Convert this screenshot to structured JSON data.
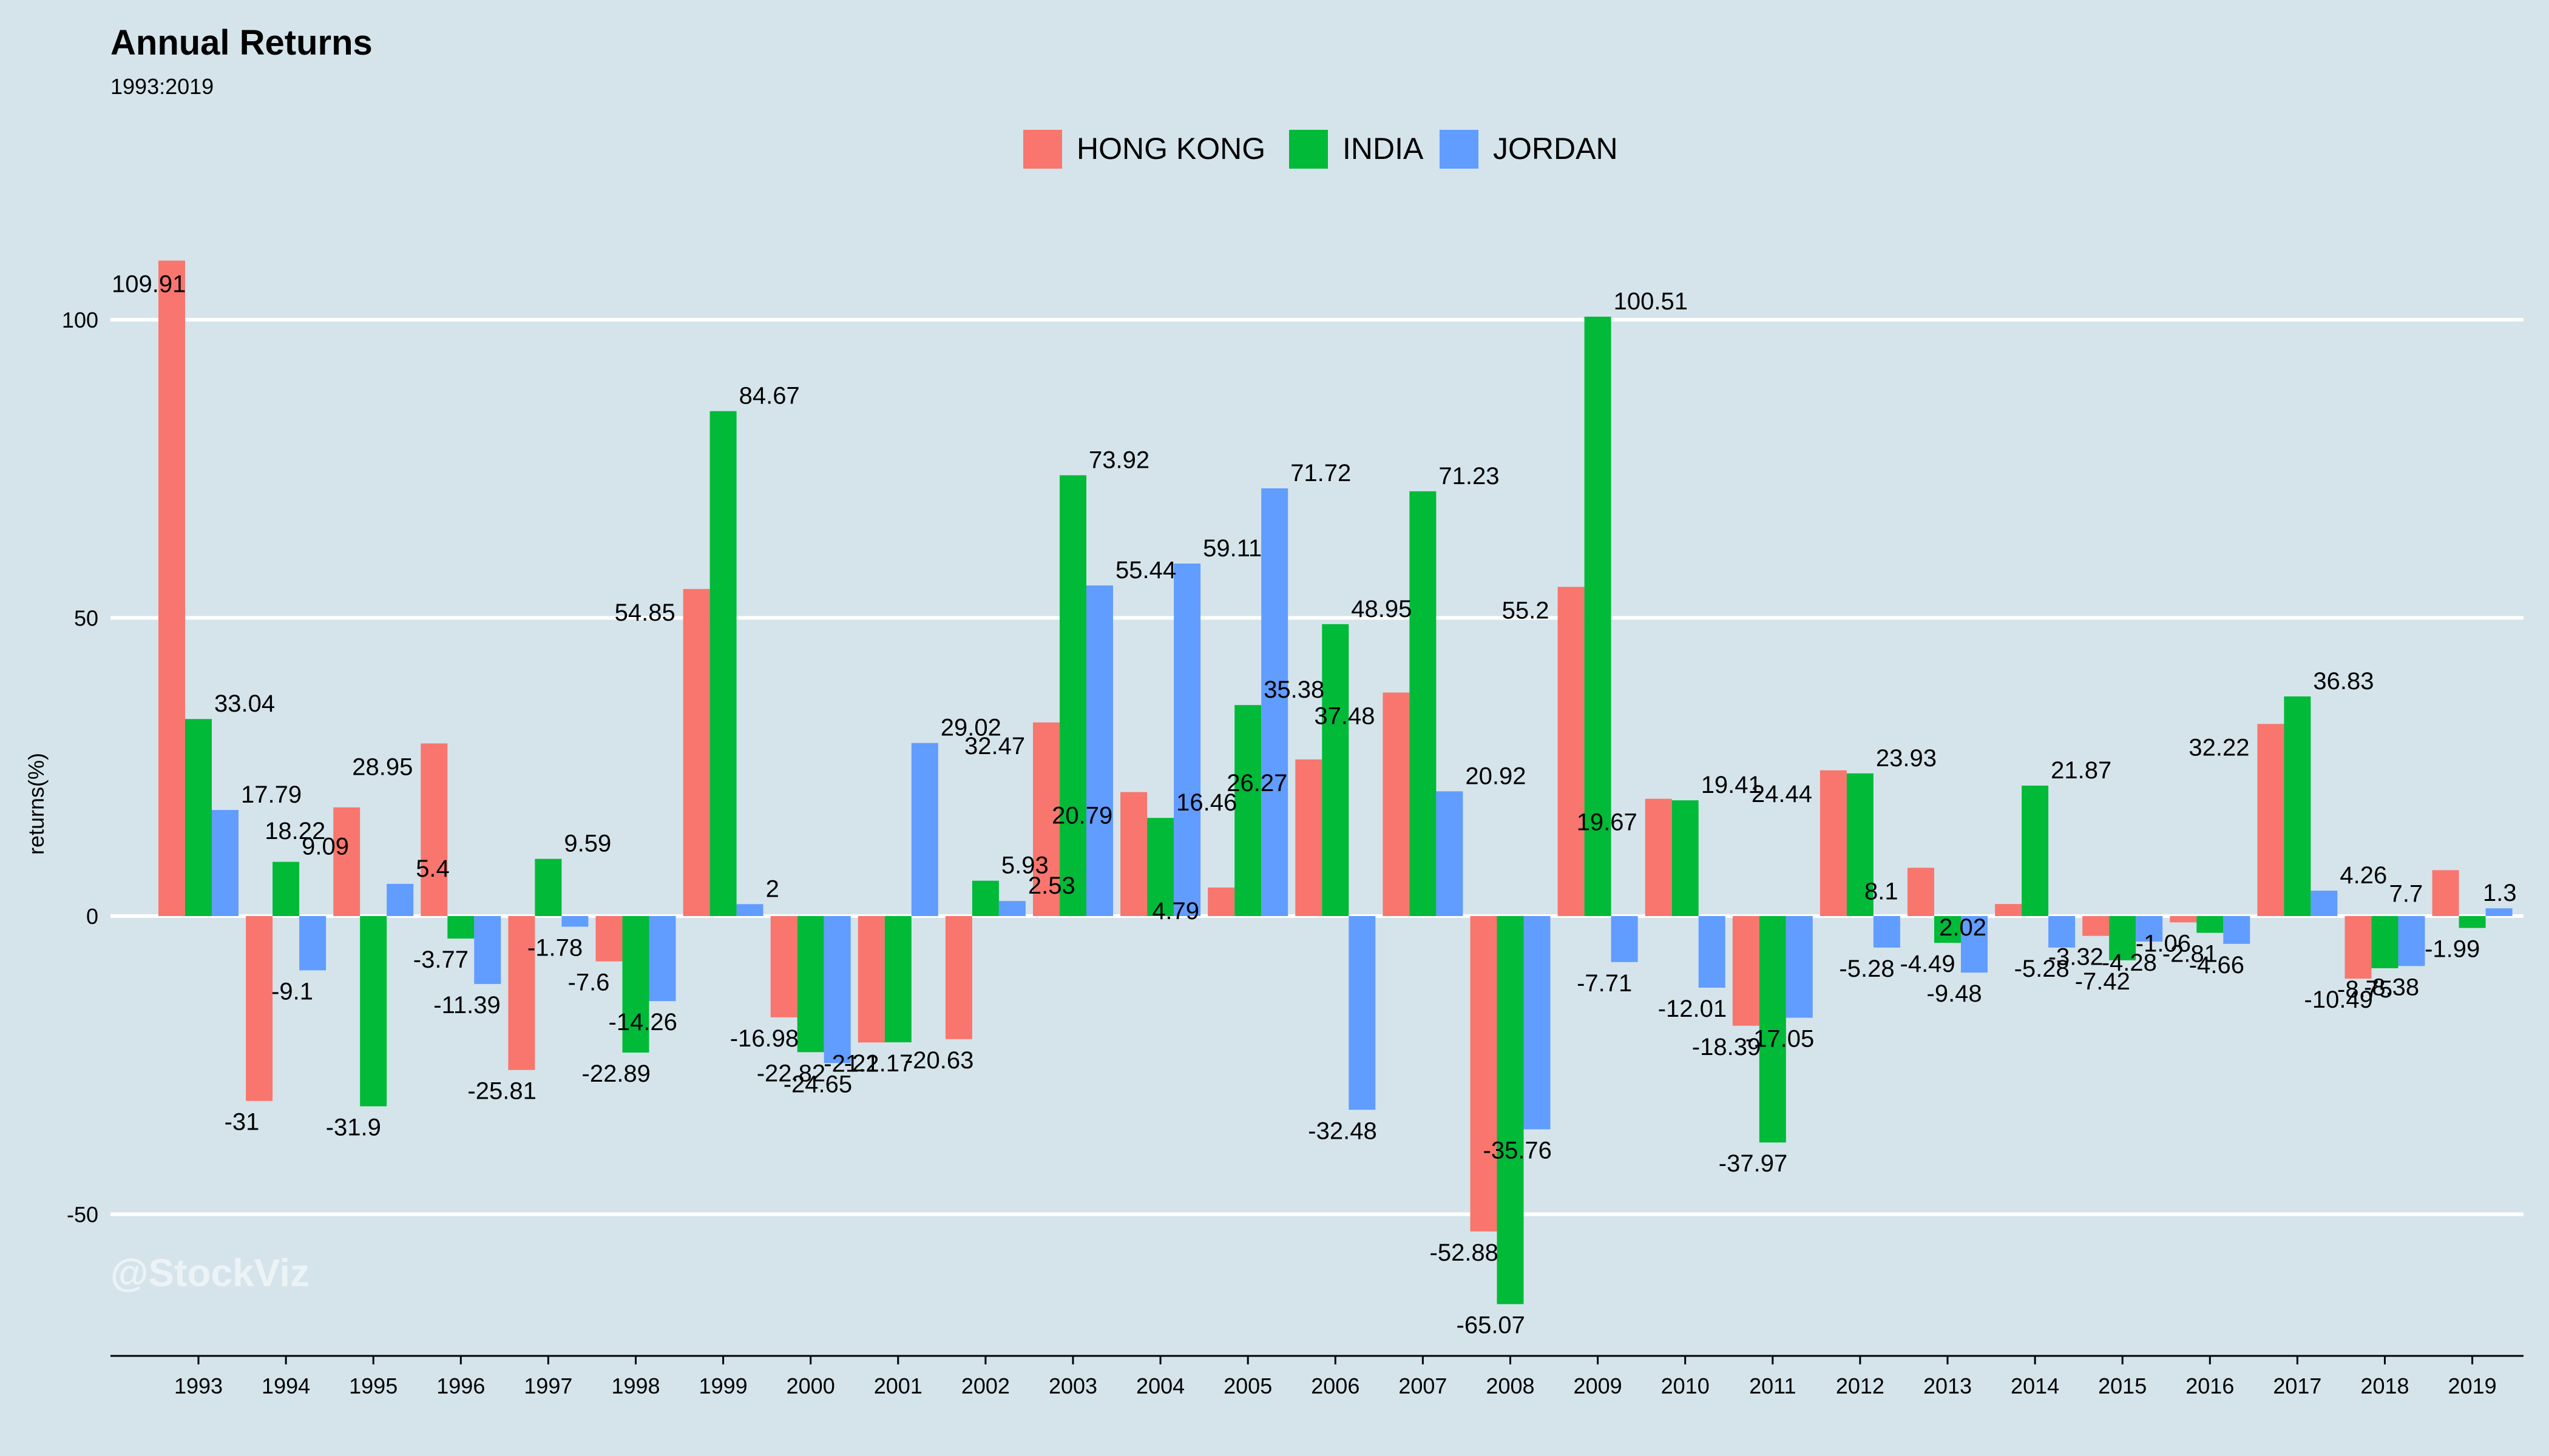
{
  "chart_data": {
    "type": "bar",
    "title": "Annual Returns",
    "subtitle": "1993:2019",
    "ylabel": "returns(%)",
    "xlabel": "",
    "watermark": "@StockViz",
    "ylim": [
      -72,
      120
    ],
    "yticks": [
      -50,
      0,
      50,
      100
    ],
    "grid": true,
    "legend_position": "top-center",
    "categories": [
      "1993",
      "1994",
      "1995",
      "1996",
      "1997",
      "1998",
      "1999",
      "2000",
      "2001",
      "2002",
      "2003",
      "2004",
      "2005",
      "2006",
      "2007",
      "2008",
      "2009",
      "2010",
      "2011",
      "2012",
      "2013",
      "2014",
      "2015",
      "2016",
      "2017",
      "2018",
      "2019"
    ],
    "series": [
      {
        "name": "HONG KONG",
        "color": "#f8766d",
        "values": [
          109.91,
          -31,
          18.22,
          28.95,
          -25.81,
          -7.6,
          54.85,
          -16.98,
          -21.2,
          -20.63,
          32.47,
          20.79,
          4.79,
          26.27,
          37.48,
          -52.88,
          55.2,
          19.67,
          -18.39,
          24.44,
          8.1,
          2.02,
          -3.32,
          -1.06,
          32.22,
          -10.49,
          7.7
        ],
        "labels": [
          "109.91",
          "-31",
          "18.22",
          "28.95",
          "-25.81",
          "-7.6",
          "54.85",
          "-16.98",
          "-21.2",
          "-20.63",
          "32.47",
          "20.79",
          "4.79",
          "26.27",
          "37.48",
          "-52.88",
          "55.2",
          "19.67",
          "-18.39",
          "24.44",
          "8.1",
          "2.02",
          "-3.32",
          "-1.06",
          "32.22",
          "-10.49",
          "7.7"
        ]
      },
      {
        "name": "INDIA",
        "color": "#00ba38",
        "values": [
          33.04,
          9.09,
          -31.9,
          -3.77,
          9.59,
          -22.89,
          84.67,
          -22.82,
          -21.17,
          5.93,
          73.92,
          16.46,
          35.38,
          48.95,
          71.23,
          -65.07,
          100.51,
          19.41,
          -37.97,
          23.93,
          -4.49,
          21.87,
          -7.42,
          -2.81,
          36.83,
          -8.75,
          -1.99
        ],
        "labels": [
          "33.04",
          "9.09",
          "-31.9",
          "-3.77",
          "9.59",
          "-22.89",
          "84.67",
          "-22.82",
          "-21.17",
          "5.93",
          "73.92",
          "16.46",
          "35.38",
          "48.95",
          "71.23",
          "-65.07",
          "100.51",
          "19.41",
          "-37.97",
          "23.93",
          "-4.49",
          "21.87",
          "-7.42",
          "-2.81",
          "36.83",
          "-8.75",
          "-1.99"
        ]
      },
      {
        "name": "JORDAN",
        "color": "#619cff",
        "values": [
          17.79,
          -9.1,
          5.4,
          -11.39,
          -1.78,
          -14.26,
          2,
          -24.65,
          29.02,
          2.53,
          55.44,
          59.11,
          71.72,
          -32.48,
          20.92,
          -35.76,
          -7.71,
          -12.01,
          -17.05,
          -5.28,
          -9.48,
          -5.28,
          -4.28,
          -4.66,
          4.26,
          -8.38,
          1.3
        ],
        "labels": [
          "17.79",
          "-9.1",
          "5.4",
          "-11.39",
          "-1.78",
          "-14.26",
          "2",
          "-24.65",
          "29.02",
          "2.53",
          "55.44",
          "59.11",
          "71.72",
          "-32.48",
          "20.92",
          "-35.76",
          "-7.71",
          "-12.01",
          "-17.05",
          "-5.28",
          "-9.48",
          "-5.28",
          "-4.28",
          "-4.66",
          "4.26",
          "-8.38",
          "1.3"
        ]
      }
    ]
  }
}
